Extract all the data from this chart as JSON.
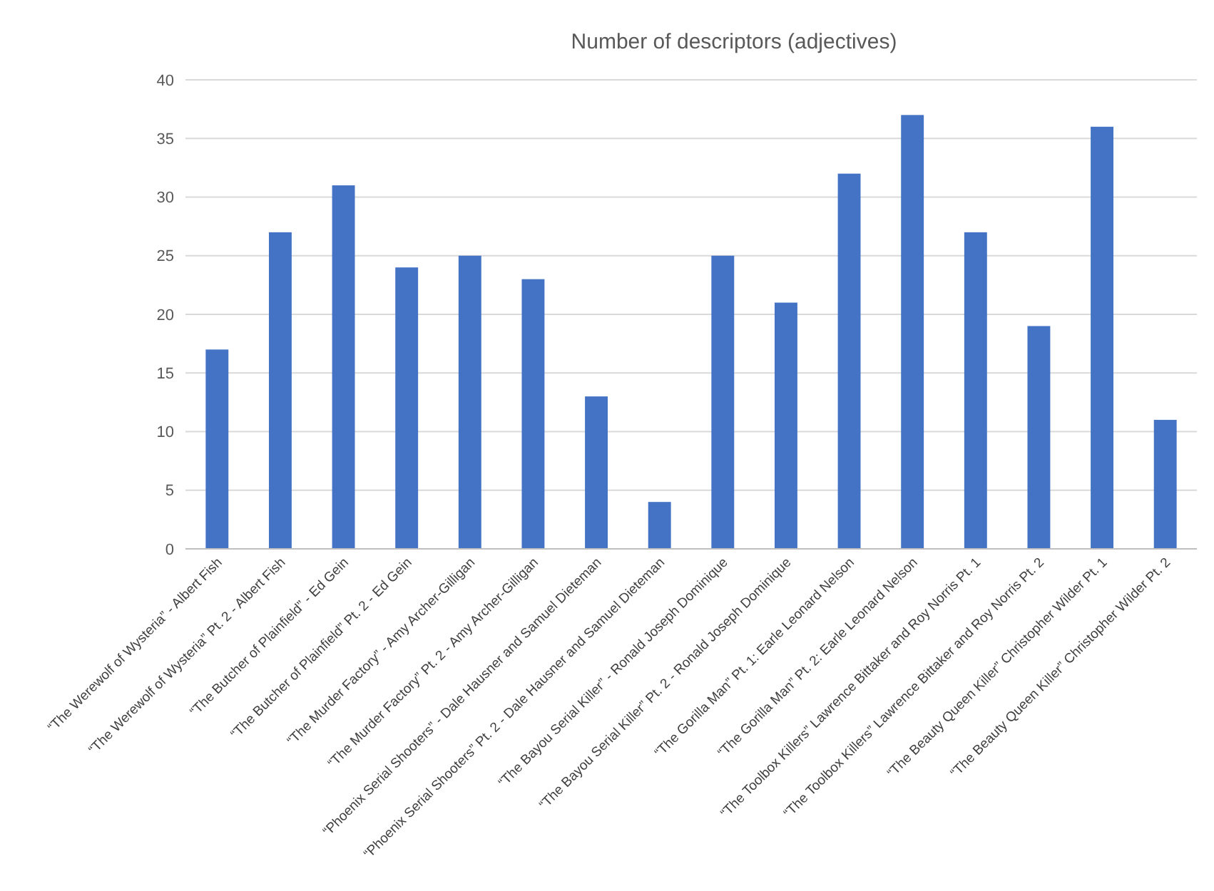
{
  "chart_data": {
    "type": "bar",
    "title": "Number of descriptors (adjectives)",
    "categories": [
      "“The Werewolf of Wysteria” - Albert Fish",
      "“The Werewolf of Wysteria” Pt. 2 - Albert Fish",
      "“The Butcher of Plainfield” - Ed Gein",
      "“The Butcher of Plainfield” Pt. 2 - Ed Gein",
      "“The Murder Factory” - Amy Archer-Gilligan",
      "“The Murder Factory” Pt. 2 - Amy Archer-Gilligan",
      "“Phoenix Serial Shooters” - Dale Hausner and Samuel Dieteman",
      "“Phoenix Serial Shooters” Pt. 2 - Dale Hausner and Samuel Dieteman",
      "“The Bayou Serial Killer” - Ronald Joseph Dominique",
      "“The Bayou Serial Killer” Pt. 2 - Ronald Joseph Dominique",
      "“The Gorilla Man” Pt. 1: Earle Leonard Nelson",
      "“The Gorilla Man” Pt. 2: Earle Leonard Nelson",
      "“The Toolbox Killers” Lawrence Bittaker and Roy Norris Pt. 1",
      "“The Toolbox Killers” Lawrence Bittaker and Roy Norris Pt. 2",
      "“The Beauty Queen Killer” Christopher Wilder Pt. 1",
      "“The Beauty Queen Killer” Christopher Wilder Pt. 2"
    ],
    "values": [
      17,
      27,
      31,
      24,
      25,
      23,
      13,
      4,
      25,
      21,
      32,
      37,
      27,
      19,
      36,
      11
    ],
    "color": "#4472c4",
    "ylim": [
      0,
      40
    ],
    "yticks": [
      0,
      5,
      10,
      15,
      20,
      25,
      30,
      35,
      40
    ],
    "grid": "y"
  }
}
